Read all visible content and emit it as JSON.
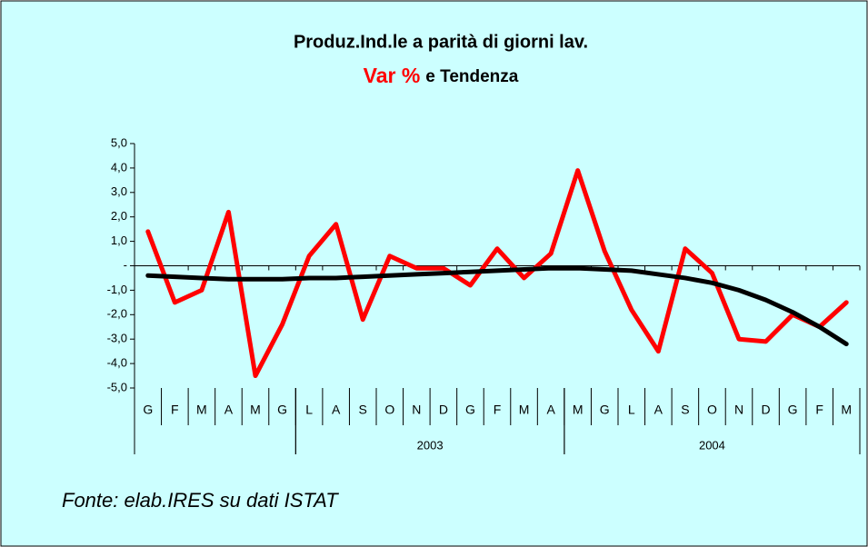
{
  "chart_data": {
    "type": "line",
    "title": "Produz.Ind.le a parità di giorni lav.",
    "subtitle": [
      {
        "text": "Var %",
        "color": "#ff0000"
      },
      {
        "text": "e Tendenza",
        "color": "#000000"
      }
    ],
    "source": "Fonte: elab.IRES su dati ISTAT",
    "categories": [
      "G",
      "F",
      "M",
      "A",
      "M",
      "G",
      "L",
      "A",
      "S",
      "O",
      "N",
      "D",
      "G",
      "F",
      "M",
      "A",
      "M",
      "G",
      "L",
      "A",
      "S",
      "O",
      "N",
      "D",
      "G",
      "F",
      "M"
    ],
    "groups": [
      {
        "label": null,
        "start": 0,
        "end": 5
      },
      {
        "label": "2003",
        "start": 6,
        "end": 15
      },
      {
        "label": "2004",
        "start": 16,
        "end": 26
      }
    ],
    "series": [
      {
        "color": "#ff0000",
        "values": [
          1.4,
          -1.5,
          -1.0,
          2.2,
          -4.5,
          -2.4,
          0.4,
          1.7,
          -2.2,
          0.4,
          -0.1,
          -0.1,
          -0.8,
          0.7,
          -0.5,
          0.5,
          3.9,
          0.6,
          -1.8,
          -3.5,
          0.7,
          -0.3,
          -3.0,
          -3.1,
          -2.0,
          -2.5,
          -1.5
        ]
      },
      {
        "color": "#000000",
        "values": [
          -0.4,
          -0.45,
          -0.5,
          -0.55,
          -0.55,
          -0.55,
          -0.5,
          -0.5,
          -0.45,
          -0.4,
          -0.35,
          -0.3,
          -0.25,
          -0.2,
          -0.15,
          -0.1,
          -0.1,
          -0.15,
          -0.2,
          -0.35,
          -0.5,
          -0.7,
          -1.0,
          -1.4,
          -1.9,
          -2.5,
          -3.2
        ]
      }
    ],
    "ylim": [
      -5,
      5
    ],
    "yticks": [
      {
        "value": 5,
        "label": "5,0"
      },
      {
        "value": 4,
        "label": "4,0"
      },
      {
        "value": 3,
        "label": "3,0"
      },
      {
        "value": 2,
        "label": "2,0"
      },
      {
        "value": 1,
        "label": "1,0"
      },
      {
        "value": 0,
        "label": "-"
      },
      {
        "value": -1,
        "label": "-1,0"
      },
      {
        "value": -2,
        "label": "-2,0"
      },
      {
        "value": -3,
        "label": "-3,0"
      },
      {
        "value": -4,
        "label": "-4,0"
      },
      {
        "value": -5,
        "label": "-5,0"
      }
    ]
  }
}
